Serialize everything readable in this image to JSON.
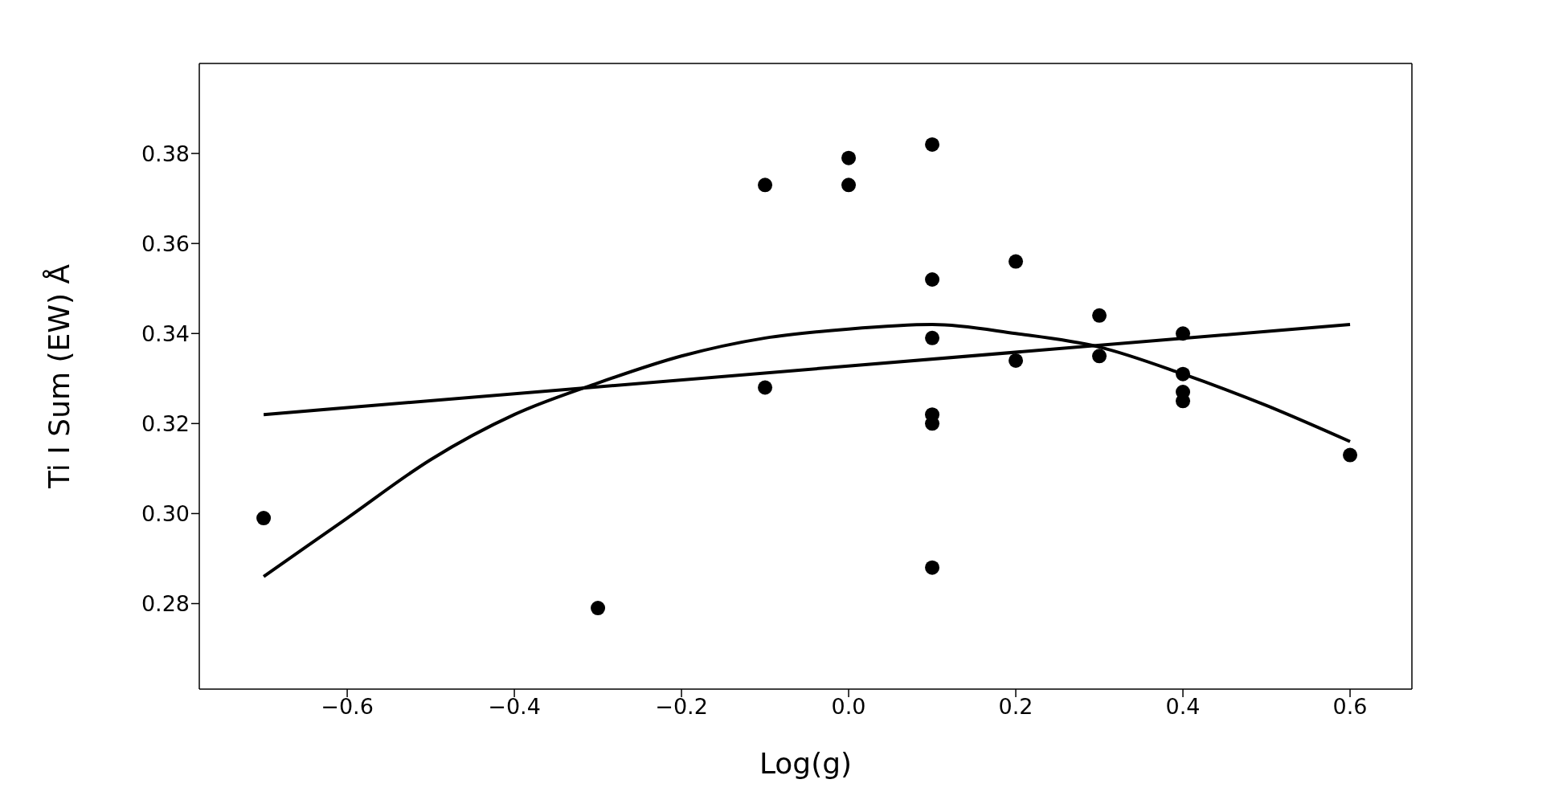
{
  "chart_data": {
    "type": "scatter",
    "xlabel": "Log(g)",
    "ylabel": "Ti I Sum (EW) Å",
    "xlim": [
      -0.777,
      0.674
    ],
    "ylim": [
      0.261,
      0.4
    ],
    "xticks": [
      {
        "value": -0.6,
        "label": "−0.6"
      },
      {
        "value": -0.4,
        "label": "−0.4"
      },
      {
        "value": -0.2,
        "label": "−0.2"
      },
      {
        "value": 0,
        "label": "0.0"
      },
      {
        "value": 0.2,
        "label": "0.2"
      },
      {
        "value": 0.4,
        "label": "0.4"
      },
      {
        "value": 0.6,
        "label": "0.6"
      }
    ],
    "yticks": [
      {
        "value": 0.28,
        "label": "0.28"
      },
      {
        "value": 0.3,
        "label": "0.30"
      },
      {
        "value": 0.32,
        "label": "0.32"
      },
      {
        "value": 0.34,
        "label": "0.34"
      },
      {
        "value": 0.36,
        "label": "0.36"
      },
      {
        "value": 0.38,
        "label": "0.38"
      }
    ],
    "marker": "circle",
    "series": [
      {
        "color": "#000000",
        "x": [
          -0.7,
          -0.3,
          -0.1,
          -0.1,
          0,
          0,
          0.1,
          0.1,
          0.1,
          0.1,
          0.1,
          0.1,
          0.2,
          0.2,
          0.3,
          0.3,
          0.4,
          0.4,
          0.4,
          0.4,
          0.6
        ],
        "values": [
          0.299,
          0.279,
          0.373,
          0.328,
          0.379,
          0.373,
          0.382,
          0.352,
          0.339,
          0.322,
          0.32,
          0.288,
          0.356,
          0.334,
          0.344,
          0.335,
          0.34,
          0.331,
          0.327,
          0.325,
          0.313
        ]
      },
      {
        "type": "line",
        "color": "#000000",
        "marker": "none",
        "line_style": "solid",
        "x": [
          -0.7,
          0.6
        ],
        "values": [
          0.322,
          0.342
        ]
      },
      {
        "type": "line",
        "color": "#000000",
        "marker": "none",
        "line_style": "solid",
        "x": [
          -0.7,
          -0.6,
          -0.5,
          -0.4,
          -0.3,
          -0.2,
          -0.1,
          0,
          0.1,
          0.2,
          0.3,
          0.4,
          0.5,
          0.6
        ],
        "values": [
          0.286,
          0.299,
          0.312,
          0.322,
          0.329,
          0.335,
          0.339,
          0.341,
          0.342,
          0.34,
          0.337,
          0.331,
          0.324,
          0.316
        ]
      }
    ]
  }
}
